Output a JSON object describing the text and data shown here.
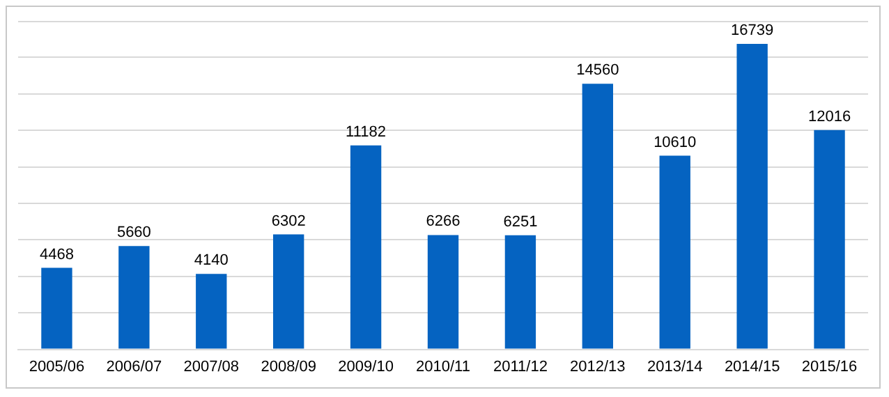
{
  "chart_data": {
    "type": "bar",
    "categories": [
      "2005/06",
      "2006/07",
      "2007/08",
      "2008/09",
      "2009/10",
      "2010/11",
      "2011/12",
      "2012/13",
      "2013/14",
      "2014/15",
      "2015/16"
    ],
    "values": [
      4468,
      5660,
      4140,
      6302,
      11182,
      6266,
      6251,
      14560,
      10610,
      16739,
      12016
    ],
    "color": "#0563c1",
    "ylim": [
      0,
      18000
    ],
    "yticks": [
      0,
      2000,
      4000,
      6000,
      8000,
      10000,
      12000,
      14000,
      16000
    ],
    "grid": "y",
    "tick_labels": "x",
    "data_labels": true,
    "legend": false
  }
}
